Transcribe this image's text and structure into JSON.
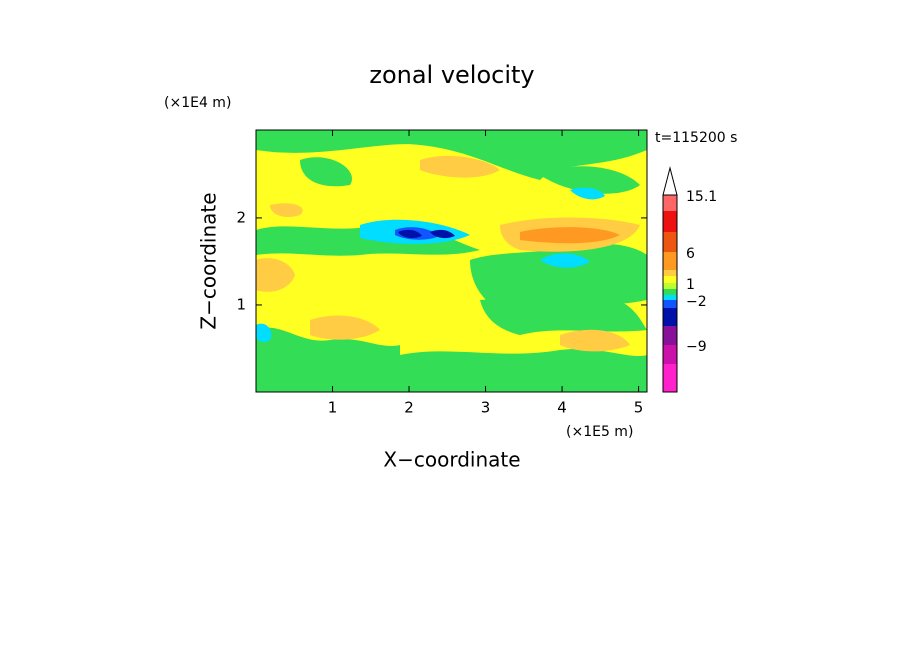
{
  "chart_data": {
    "type": "contour",
    "title": "zonal velocity",
    "annotation": "t=115200 s",
    "xlabel": "X−coordinate",
    "ylabel": "Z−coordinate",
    "x_unit": "(×1E5 m)",
    "y_unit": "(×1E4 m)",
    "xlim": [
      0,
      5.11
    ],
    "ylim": [
      0,
      3.01
    ],
    "xticks": [
      1,
      2,
      3,
      4,
      5
    ],
    "yticks": [
      1,
      2
    ],
    "colorbar": {
      "colors": [
        "#ff22cc",
        "#cc11aa",
        "#881199",
        "#0011aa",
        "#1155ff",
        "#00ddff",
        "#33dd55",
        "#bbff33",
        "#ffff22",
        "#ffcc44",
        "#ff9922",
        "#ee5511",
        "#ee1111",
        "#ff6666",
        "#ffb8b8"
      ],
      "labels": [
        {
          "value": 15.1,
          "label": "15.1"
        },
        6,
        1,
        {
          "value": -2,
          "label": "−2"
        },
        {
          "value": -9,
          "label": "−9"
        }
      ]
    }
  }
}
